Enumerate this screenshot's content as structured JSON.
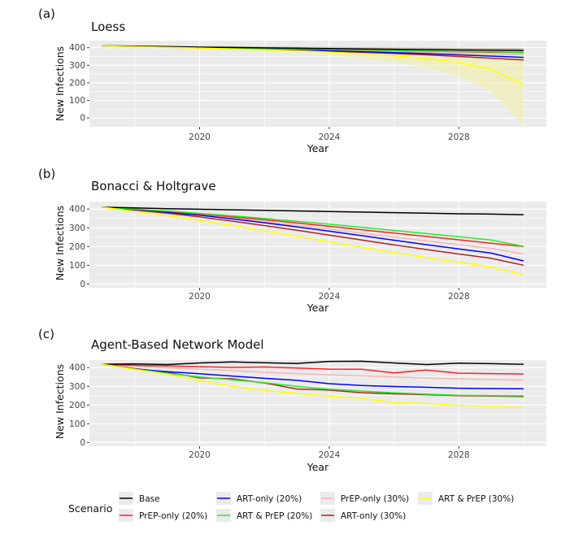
{
  "chart_data": [
    {
      "type": "line",
      "panel_label": "(a)",
      "title": "Loess",
      "xlabel": "Year",
      "ylabel": "New Infections",
      "xlim": [
        2016.6,
        2030.7
      ],
      "ylim": [
        -50,
        440
      ],
      "x_ticks": [
        2020,
        2024,
        2028
      ],
      "y_ticks": [
        0,
        100,
        200,
        300,
        400
      ],
      "x": [
        2017,
        2018,
        2019,
        2020,
        2021,
        2022,
        2023,
        2024,
        2025,
        2026,
        2027,
        2028,
        2029,
        2030
      ],
      "series": [
        {
          "name": "Base",
          "values": [
            410,
            409,
            406,
            403,
            401,
            399,
            397,
            395,
            393,
            391,
            389,
            387,
            386,
            384
          ]
        },
        {
          "name": "PrEP-only (20%)",
          "values": [
            410,
            408,
            405,
            401,
            398,
            395,
            392,
            389,
            386,
            383,
            380,
            377,
            374,
            372
          ]
        },
        {
          "name": "ART-only (20%)",
          "values": [
            410,
            407,
            403,
            399,
            395,
            391,
            387,
            382,
            377,
            372,
            366,
            359,
            352,
            345
          ]
        },
        {
          "name": "ART & PrEP (20%)",
          "values": [
            410,
            408,
            405,
            402,
            399,
            396,
            393,
            390,
            387,
            384,
            381,
            378,
            376,
            374
          ]
        },
        {
          "name": "PrEP-only (30%)",
          "values": [
            410,
            407,
            404,
            400,
            396,
            392,
            388,
            384,
            380,
            376,
            372,
            368,
            364,
            360
          ]
        },
        {
          "name": "ART-only (30%)",
          "values": [
            410,
            407,
            403,
            399,
            395,
            390,
            385,
            380,
            374,
            367,
            359,
            350,
            340,
            330
          ]
        },
        {
          "name": "ART & PrEP (30%)",
          "values": [
            410,
            406,
            402,
            398,
            393,
            388,
            382,
            375,
            366,
            354,
            338,
            316,
            278,
            190
          ]
        }
      ],
      "bands": [
        {
          "series": "Base",
          "lower": [
            405,
            404,
            402,
            400,
            398,
            396,
            394,
            392,
            390,
            388,
            386,
            384,
            382,
            380
          ],
          "upper": [
            414,
            413,
            411,
            409,
            408,
            406,
            405,
            404,
            403,
            402,
            401,
            400,
            399,
            398
          ]
        },
        {
          "series": "ART & PrEP (30%)",
          "lower": [
            405,
            402,
            398,
            393,
            387,
            380,
            371,
            358,
            342,
            320,
            288,
            238,
            150,
            -40
          ],
          "upper": [
            414,
            411,
            407,
            403,
            399,
            395,
            391,
            387,
            383,
            379,
            374,
            368,
            362,
            356
          ]
        }
      ]
    },
    {
      "type": "line",
      "panel_label": "(b)",
      "title": "Bonacci & Holtgrave",
      "xlabel": "Year",
      "ylabel": "New Infections",
      "xlim": [
        2016.6,
        2030.7
      ],
      "ylim": [
        -20,
        440
      ],
      "x_ticks": [
        2020,
        2024,
        2028
      ],
      "y_ticks": [
        0,
        100,
        200,
        300,
        400
      ],
      "x": [
        2017,
        2018,
        2019,
        2020,
        2021,
        2022,
        2023,
        2024,
        2025,
        2026,
        2027,
        2028,
        2029,
        2030
      ],
      "series": [
        {
          "name": "Base",
          "values": [
            410,
            406,
            402,
            399,
            396,
            393,
            390,
            387,
            384,
            381,
            378,
            375,
            373,
            370
          ]
        },
        {
          "name": "PrEP-only (20%)",
          "values": [
            410,
            399,
            388,
            374,
            359,
            343,
            326,
            308,
            290,
            272,
            254,
            236,
            218,
            200
          ]
        },
        {
          "name": "ART-only (20%)",
          "values": [
            410,
            397,
            383,
            367,
            348,
            327,
            305,
            282,
            258,
            234,
            210,
            187,
            165,
            123
          ]
        },
        {
          "name": "ART & PrEP (20%)",
          "values": [
            410,
            400,
            390,
            377,
            364,
            350,
            335,
            319,
            303,
            286,
            269,
            252,
            235,
            201
          ]
        },
        {
          "name": "PrEP-only (30%)",
          "values": [
            410,
            398,
            385,
            369,
            352,
            333,
            313,
            293,
            272,
            251,
            230,
            210,
            190,
            160
          ]
        },
        {
          "name": "ART-only (30%)",
          "values": [
            410,
            395,
            378,
            358,
            336,
            312,
            287,
            261,
            235,
            209,
            184,
            160,
            137,
            100
          ]
        },
        {
          "name": "ART & PrEP (30%)",
          "values": [
            410,
            388,
            365,
            340,
            313,
            284,
            255,
            225,
            196,
            168,
            141,
            116,
            92,
            48
          ]
        }
      ]
    },
    {
      "type": "line",
      "panel_label": "(c)",
      "title": "Agent-Based Network Model",
      "xlabel": "Year",
      "ylabel": "New Infections",
      "xlim": [
        2016.6,
        2030.7
      ],
      "ylim": [
        -20,
        440
      ],
      "x_ticks": [
        2020,
        2024,
        2028
      ],
      "y_ticks": [
        0,
        100,
        200,
        300,
        400
      ],
      "x": [
        2017,
        2018,
        2019,
        2020,
        2021,
        2022,
        2023,
        2024,
        2025,
        2026,
        2027,
        2028,
        2029,
        2030
      ],
      "series": [
        {
          "name": "Base",
          "values": [
            418,
            420,
            416,
            425,
            430,
            426,
            422,
            433,
            434,
            425,
            416,
            424,
            421,
            418
          ]
        },
        {
          "name": "PrEP-only (20%)",
          "values": [
            418,
            412,
            409,
            405,
            401,
            403,
            398,
            392,
            391,
            372,
            387,
            370,
            368,
            366
          ]
        },
        {
          "name": "ART-only (20%)",
          "values": [
            418,
            392,
            378,
            367,
            355,
            343,
            332,
            314,
            304,
            299,
            295,
            290,
            288,
            287
          ]
        },
        {
          "name": "ART & PrEP (20%)",
          "values": [
            418,
            392,
            370,
            350,
            335,
            320,
            300,
            285,
            275,
            265,
            258,
            252,
            250,
            249
          ]
        },
        {
          "name": "PrEP-only (30%)",
          "values": [
            418,
            408,
            400,
            392,
            384,
            375,
            368,
            362,
            356,
            350,
            344,
            340,
            336,
            333
          ]
        },
        {
          "name": "ART-only (30%)",
          "values": [
            418,
            395,
            375,
            345,
            340,
            318,
            286,
            280,
            266,
            260,
            255,
            250,
            248,
            245
          ]
        },
        {
          "name": "ART & PrEP (30%)",
          "values": [
            418,
            390,
            365,
            330,
            300,
            278,
            262,
            248,
            236,
            214,
            209,
            198,
            192,
            188
          ]
        }
      ]
    }
  ],
  "legend": {
    "title": "Scenario",
    "items": [
      {
        "label": "Base",
        "color": "#000000"
      },
      {
        "label": "PrEP-only (20%)",
        "color": "#ff2020"
      },
      {
        "label": "ART-only (20%)",
        "color": "#0000ff"
      },
      {
        "label": "ART & PrEP (20%)",
        "color": "#22ee22"
      },
      {
        "label": "PrEP-only (30%)",
        "color": "#f5b5b5"
      },
      {
        "label": "ART-only (30%)",
        "color": "#b22222"
      },
      {
        "label": "ART & PrEP (30%)",
        "color": "#ffff00"
      }
    ]
  },
  "colors": {
    "panel_bg": "#ebebeb",
    "grid": "#ffffff",
    "band_base": "#9b8a7c",
    "band_artprep30": "#f2f0a8"
  }
}
